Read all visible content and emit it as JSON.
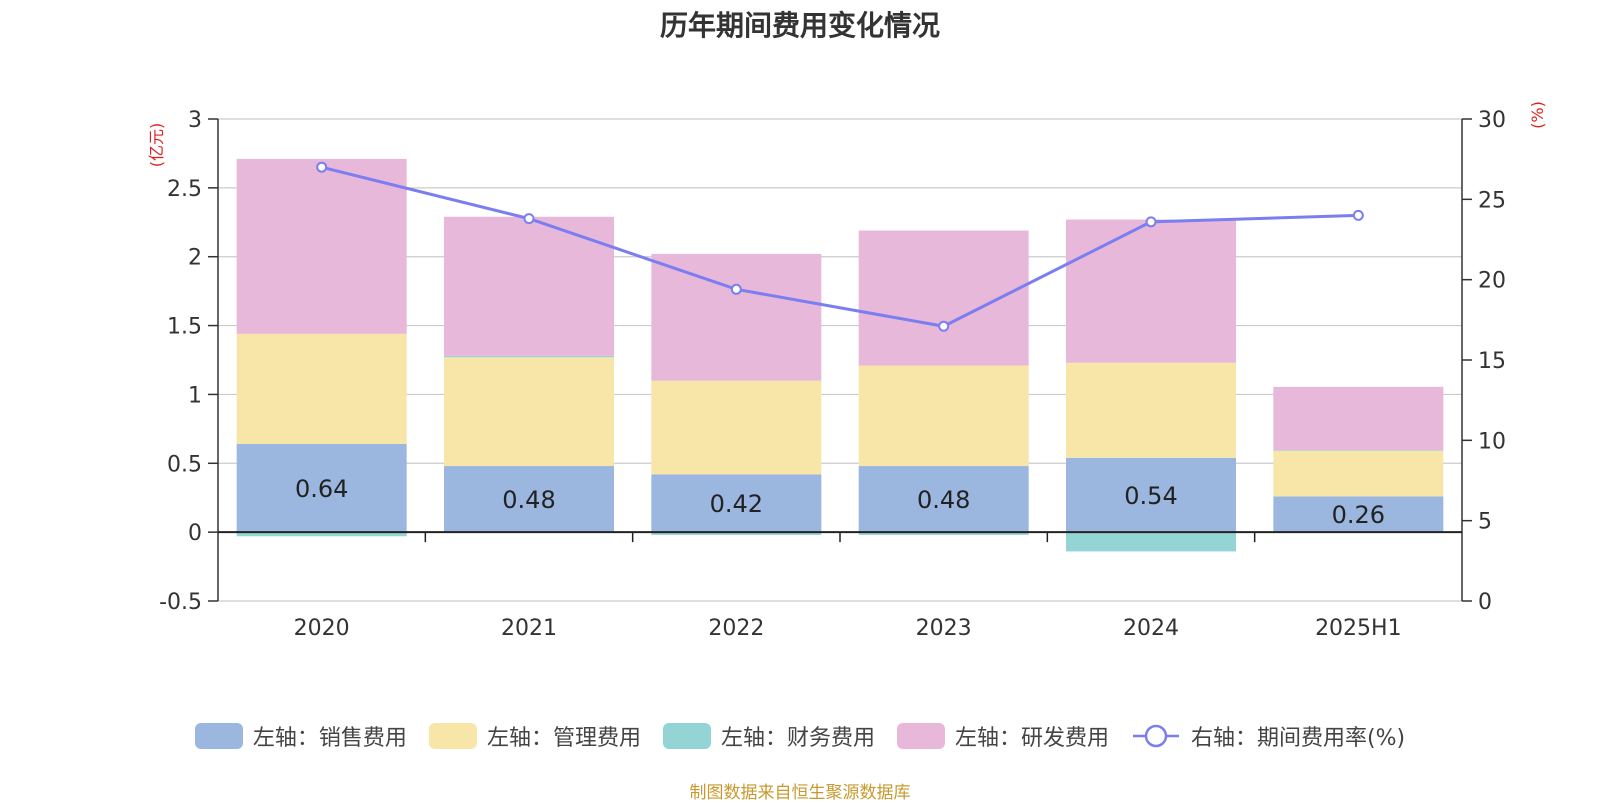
{
  "chart_data": {
    "type": "bar",
    "title": "历年期间费用变化情况",
    "categories": [
      "2020",
      "2021",
      "2022",
      "2023",
      "2024",
      "2025H1"
    ],
    "left_axis": {
      "unit": "(亿元)",
      "ylim": [
        -0.5,
        3
      ],
      "ticks": [
        "3",
        "2.5",
        "2",
        "1.5",
        "1",
        "0.5",
        "0",
        "-0.5"
      ]
    },
    "right_axis": {
      "unit": "(%)",
      "ylim": [
        0,
        30
      ],
      "ticks": [
        "30",
        "25",
        "20",
        "15",
        "10",
        "5",
        "0"
      ]
    },
    "series": [
      {
        "name": "左轴：销售费用",
        "color": "#9bb7e0",
        "values": [
          0.64,
          0.48,
          0.42,
          0.48,
          0.54,
          0.26
        ],
        "labels": [
          "0.64",
          "0.48",
          "0.42",
          "0.48",
          "0.54",
          "0.26"
        ]
      },
      {
        "name": "左轴：管理费用",
        "color": "#f8e6a8",
        "values": [
          0.8,
          0.79,
          0.68,
          0.73,
          0.69,
          0.33
        ]
      },
      {
        "name": "左轴：财务费用",
        "color": "#94d4d4",
        "values": [
          -0.03,
          0.01,
          -0.02,
          -0.02,
          -0.14,
          0.005
        ]
      },
      {
        "name": "左轴：研发费用",
        "color": "#e8b8da",
        "values": [
          1.27,
          1.01,
          0.92,
          0.98,
          1.04,
          0.46
        ]
      },
      {
        "name": "右轴：期间费用率(%)",
        "type": "line",
        "axis": "right",
        "color": "#7a7ef0",
        "values": [
          27.0,
          23.8,
          19.4,
          17.1,
          23.6,
          24.0
        ]
      }
    ],
    "grid": true,
    "legend_position": "bottom"
  },
  "source_note": "制图数据来自恒生聚源数据库"
}
